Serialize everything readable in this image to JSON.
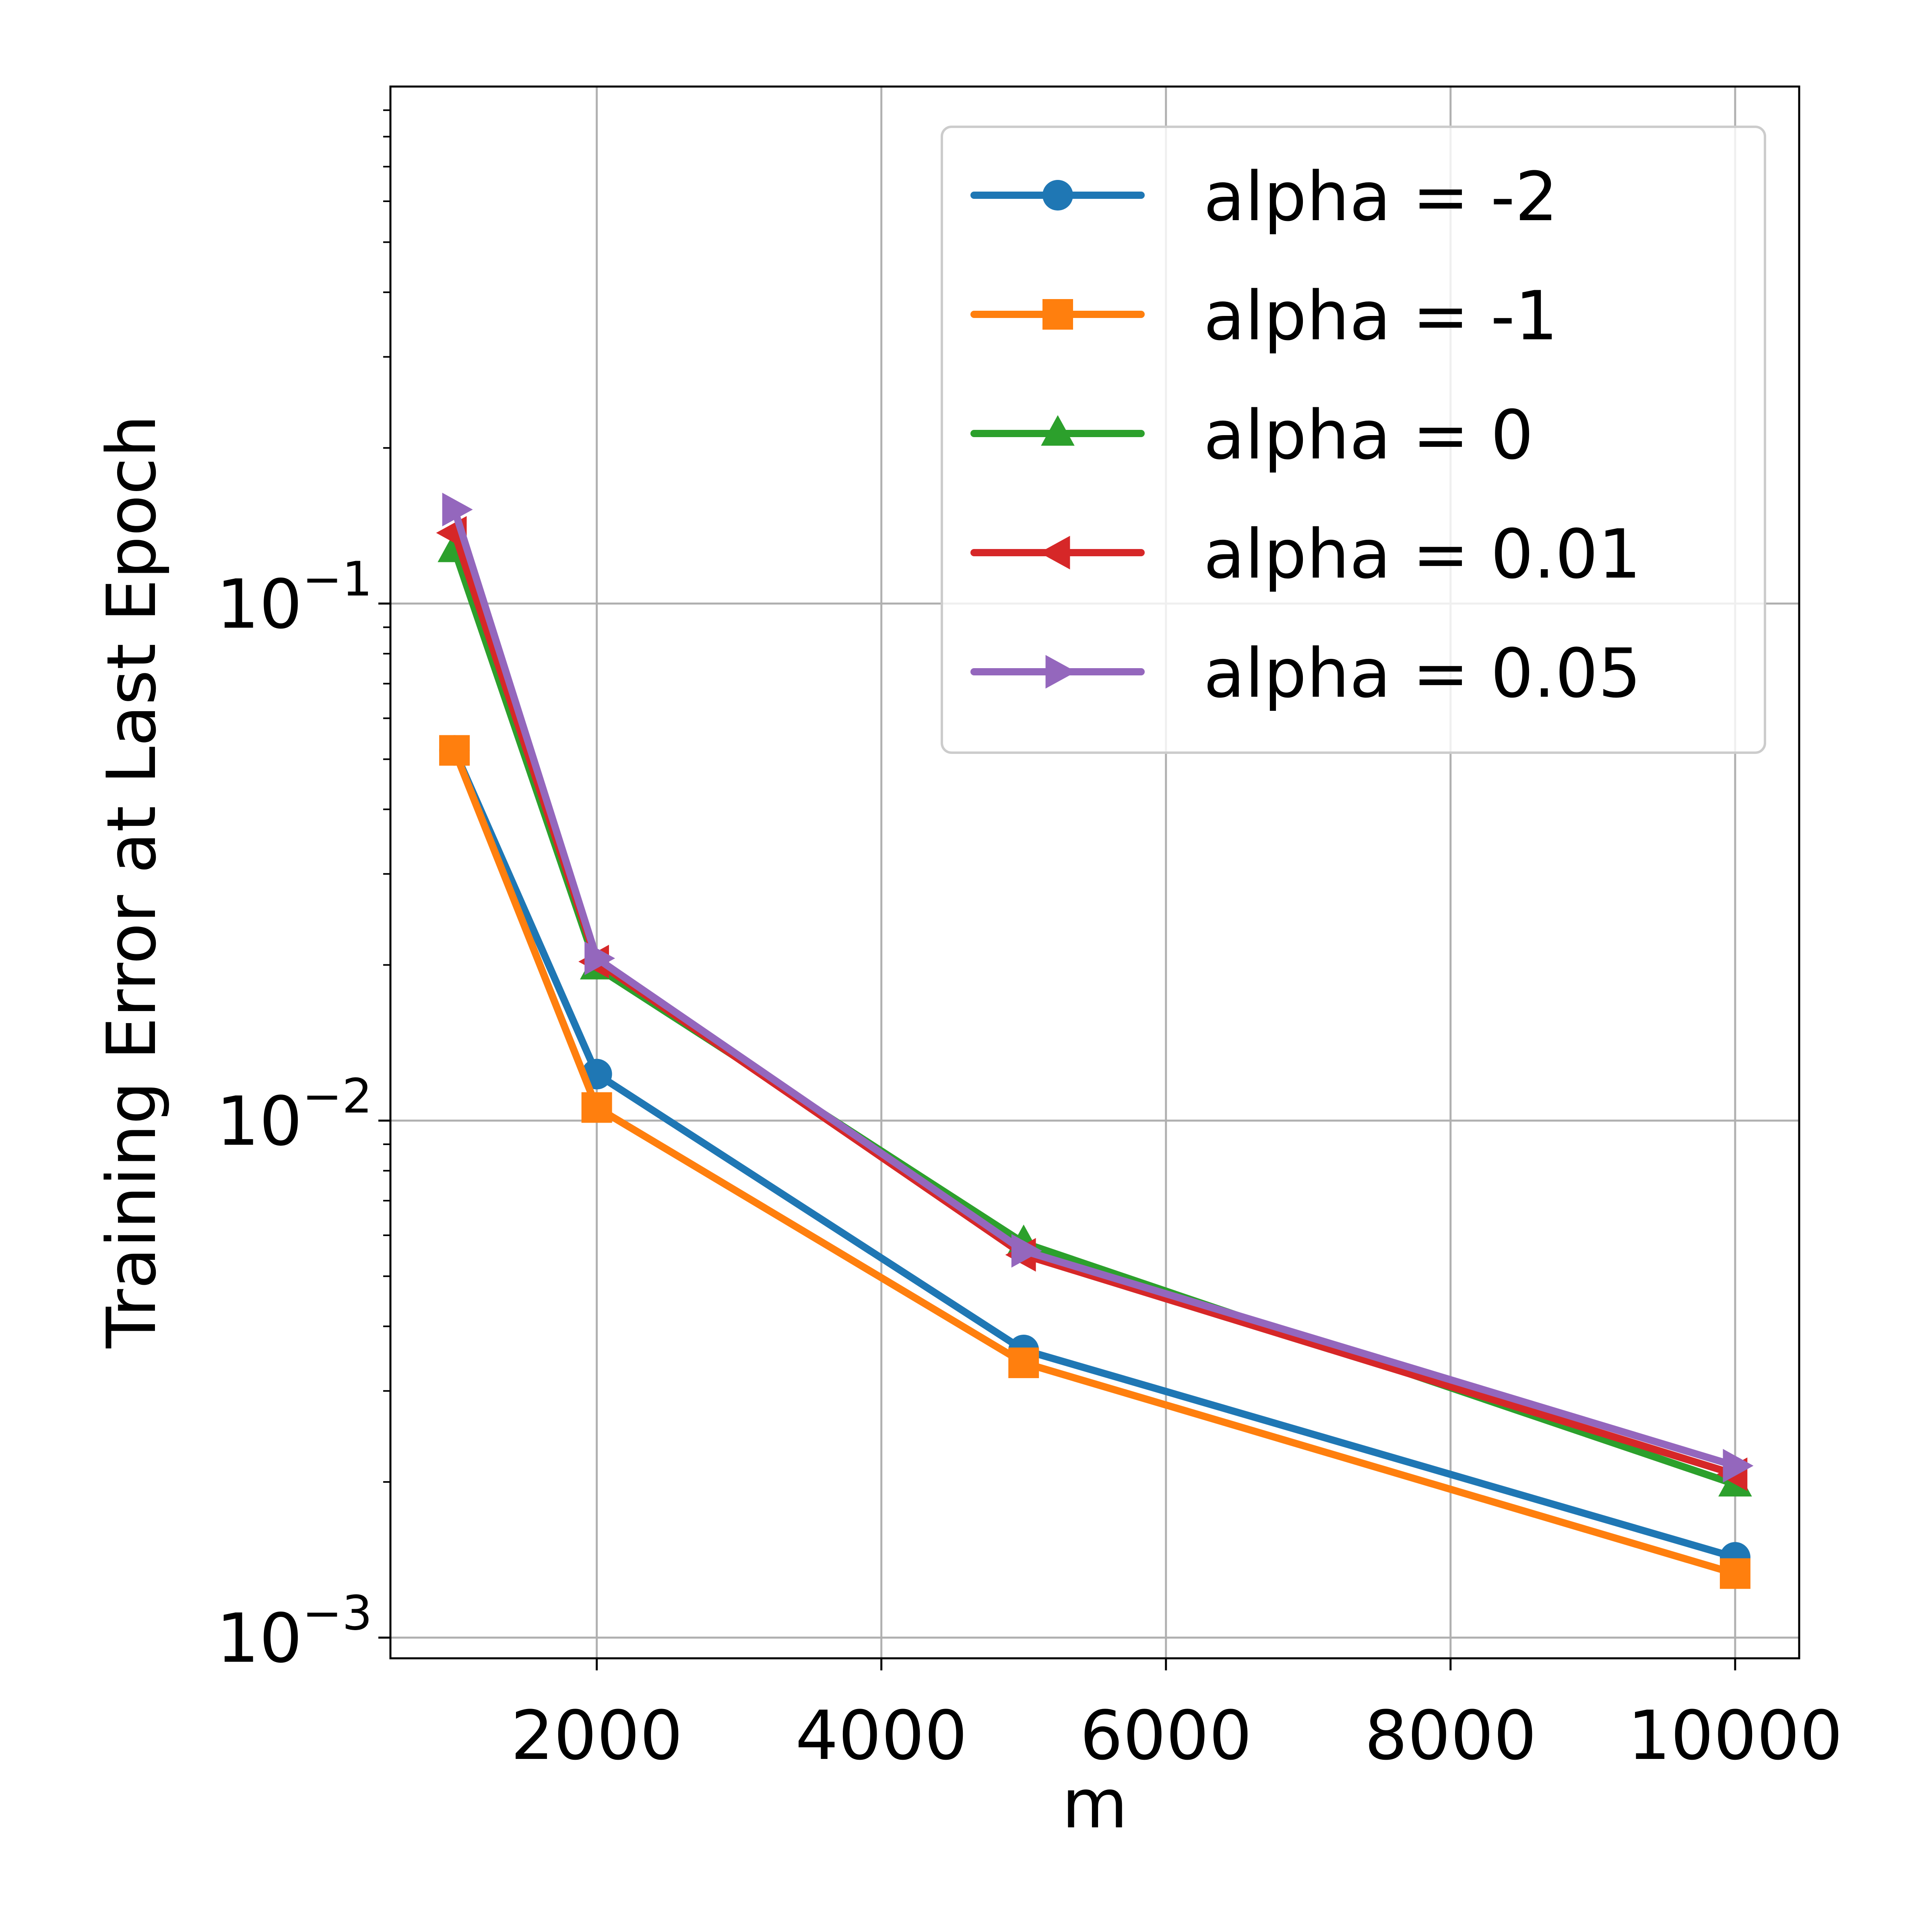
{
  "chart_data": {
    "type": "line",
    "title": "",
    "xlabel": "m",
    "ylabel": "Training Error at Last Epoch",
    "x": [
      1000,
      2000,
      5000,
      10000
    ],
    "xlim": [
      550,
      10450
    ],
    "ylim_log10": [
      -3.04,
      -0.0
    ],
    "yscale": "log",
    "grid": true,
    "legend_position": "top-right",
    "x_ticks": [
      {
        "value": 2000,
        "label": "2000"
      },
      {
        "value": 4000,
        "label": "4000"
      },
      {
        "value": 6000,
        "label": "6000"
      },
      {
        "value": 8000,
        "label": "8000"
      },
      {
        "value": 10000,
        "label": "10000"
      }
    ],
    "y_ticks": [
      {
        "exp": -1,
        "base": "10",
        "sup": "−1"
      },
      {
        "exp": -2,
        "base": "10",
        "sup": "−2"
      },
      {
        "exp": -3,
        "base": "10",
        "sup": "−3"
      }
    ],
    "series": [
      {
        "name": "alpha = -2",
        "color": "#1f77b4",
        "marker": "circle",
        "values": [
          0.052,
          0.0123,
          0.0036,
          0.00143
        ]
      },
      {
        "name": "alpha = -1",
        "color": "#ff7f0e",
        "marker": "square",
        "values": [
          0.052,
          0.0106,
          0.0034,
          0.00133
        ]
      },
      {
        "name": "alpha = 0",
        "color": "#2ca02c",
        "marker": "triangle-up",
        "values": [
          0.127,
          0.0198,
          0.0058,
          0.00198
        ]
      },
      {
        "name": "alpha = 0.01",
        "color": "#d62728",
        "marker": "triangle-left",
        "values": [
          0.137,
          0.0203,
          0.0055,
          0.00207
        ]
      },
      {
        "name": "alpha = 0.05",
        "color": "#9467bd",
        "marker": "triangle-right",
        "values": [
          0.152,
          0.0206,
          0.0056,
          0.00215
        ]
      }
    ]
  }
}
